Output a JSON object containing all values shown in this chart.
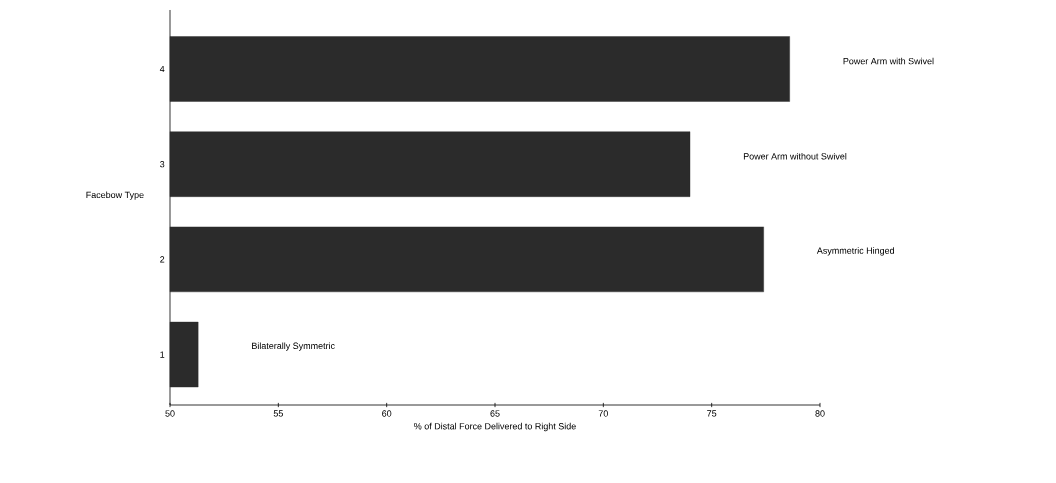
{
  "chart_data": {
    "type": "bar",
    "orientation": "horizontal",
    "categories": [
      "4",
      "3",
      "2",
      "1"
    ],
    "values": [
      78.6,
      74.0,
      77.4,
      51.3
    ],
    "color": "#2b2b2b",
    "xlabel": "% of Distal Force Delivered to Right Side",
    "ylabel": "Facebow Type",
    "xlim": [
      50,
      80
    ],
    "xticks": [
      50,
      55,
      60,
      65,
      70,
      75,
      80
    ],
    "grid": false,
    "annotations": [
      "Power Arm with Swivel",
      "Power Arm without Swivel",
      "Asymmetric Hinged",
      "Bilaterally Symmetric"
    ]
  }
}
